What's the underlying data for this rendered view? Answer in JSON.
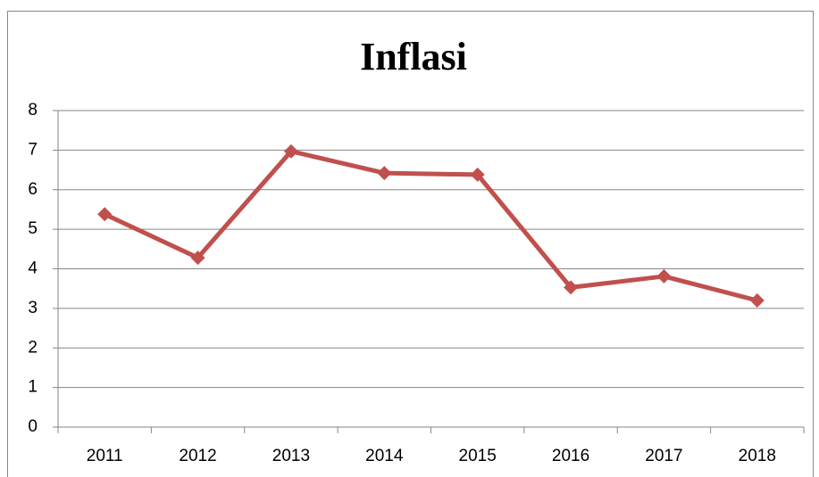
{
  "chart_data": {
    "type": "line",
    "title": "Inflasi",
    "categories": [
      "2011",
      "2012",
      "2013",
      "2014",
      "2015",
      "2016",
      "2017",
      "2018"
    ],
    "series": [
      {
        "name": "Inflasi",
        "color": "#c0504d",
        "values": [
          5.38,
          4.28,
          6.97,
          6.42,
          6.38,
          3.53,
          3.81,
          3.2
        ]
      }
    ],
    "ylim": [
      0,
      8
    ],
    "yticks": [
      0,
      1,
      2,
      3,
      4,
      5,
      6,
      7,
      8
    ],
    "grid": true
  }
}
